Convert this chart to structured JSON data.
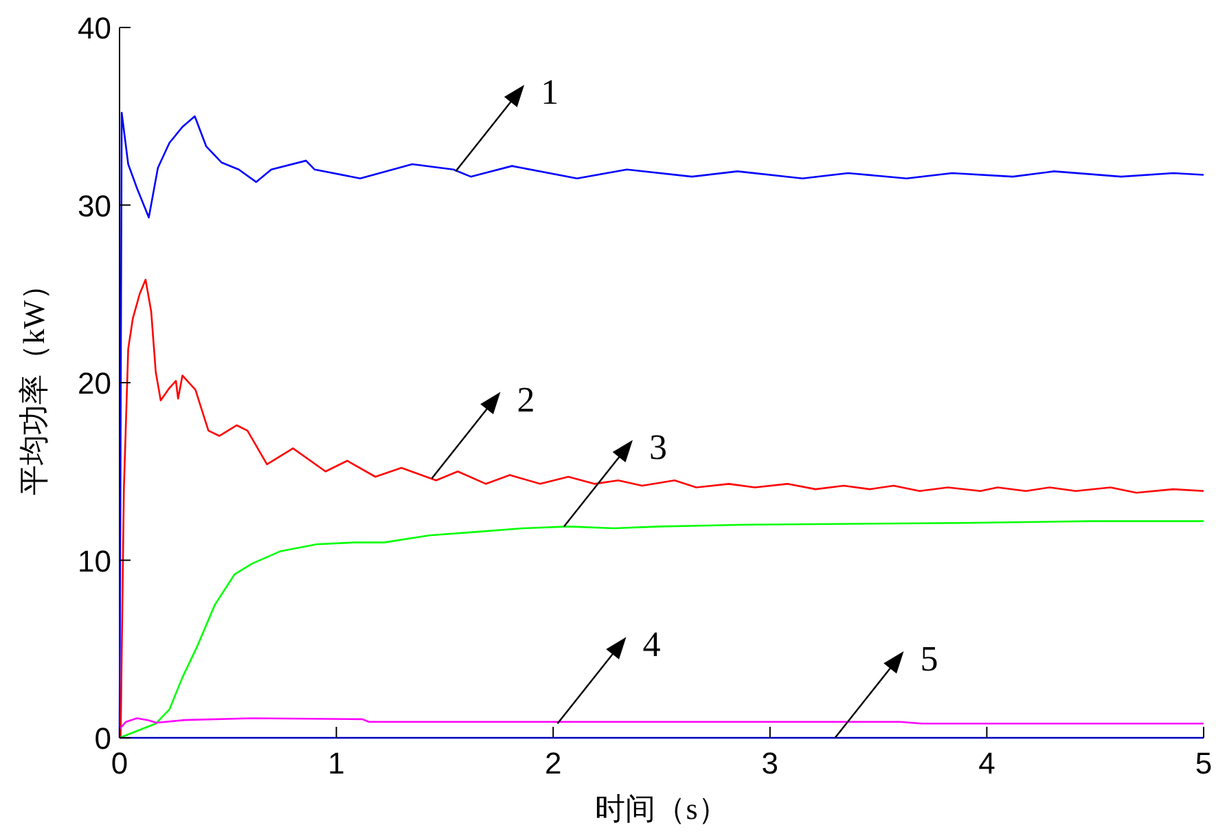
{
  "chart_data": {
    "type": "line",
    "xlabel": "时间（s）",
    "ylabel": "平均功率（kW）",
    "xlim": [
      0,
      5
    ],
    "ylim": [
      0,
      40
    ],
    "xticks": [
      0,
      1,
      2,
      3,
      4,
      5
    ],
    "yticks": [
      0,
      10,
      20,
      30,
      40
    ],
    "series": [
      {
        "color": "#0000ff",
        "x": [
          0,
          0.01,
          0.04,
          0.082,
          0.135,
          0.177,
          0.23,
          0.29,
          0.347,
          0.4,
          0.47,
          0.55,
          0.63,
          0.7,
          0.86,
          0.9,
          1.11,
          1.35,
          1.54,
          1.62,
          1.81,
          2.11,
          2.34,
          2.64,
          2.85,
          3.15,
          3.36,
          3.63,
          3.84,
          4.12,
          4.31,
          4.62,
          4.86,
          5.0
        ],
        "values": [
          0,
          35.2,
          32.3,
          30.9,
          29.3,
          32.1,
          33.5,
          34.4,
          35.0,
          33.3,
          32.4,
          32.0,
          31.3,
          32.0,
          32.5,
          32.0,
          31.5,
          32.3,
          32.0,
          31.6,
          32.2,
          31.5,
          32.0,
          31.6,
          31.9,
          31.5,
          31.8,
          31.5,
          31.8,
          31.6,
          31.9,
          31.6,
          31.8,
          31.7
        ]
      },
      {
        "color": "#ff0000",
        "x": [
          0.005,
          0.02,
          0.04,
          0.061,
          0.093,
          0.12,
          0.146,
          0.167,
          0.19,
          0.23,
          0.26,
          0.27,
          0.29,
          0.35,
          0.41,
          0.46,
          0.54,
          0.59,
          0.68,
          0.8,
          0.95,
          1.05,
          1.18,
          1.3,
          1.46,
          1.56,
          1.69,
          1.8,
          1.94,
          2.07,
          2.19,
          2.3,
          2.41,
          2.56,
          2.66,
          2.81,
          2.93,
          3.08,
          3.21,
          3.34,
          3.46,
          3.57,
          3.69,
          3.82,
          3.97,
          4.05,
          4.18,
          4.29,
          4.41,
          4.57,
          4.69,
          4.86,
          5.0
        ],
        "values": [
          0,
          14,
          21.9,
          23.6,
          25.0,
          25.8,
          24.0,
          20.6,
          19.0,
          19.7,
          20.1,
          19.1,
          20.4,
          19.6,
          17.3,
          17.0,
          17.6,
          17.3,
          15.4,
          16.3,
          15.0,
          15.6,
          14.7,
          15.2,
          14.5,
          15.0,
          14.3,
          14.8,
          14.3,
          14.7,
          14.3,
          14.5,
          14.2,
          14.5,
          14.1,
          14.3,
          14.1,
          14.3,
          14.0,
          14.2,
          14.0,
          14.2,
          13.9,
          14.1,
          13.9,
          14.1,
          13.9,
          14.1,
          13.9,
          14.1,
          13.8,
          14.0,
          13.9
        ]
      },
      {
        "color": "#00ff00",
        "x": [
          0,
          0.167,
          0.23,
          0.29,
          0.36,
          0.44,
          0.53,
          0.61,
          0.74,
          0.91,
          1.08,
          1.22,
          1.43,
          1.65,
          1.86,
          2.07,
          2.28,
          2.49,
          2.89,
          3.88,
          4.48,
          5.0
        ],
        "values": [
          0,
          0.8,
          1.6,
          3.4,
          5.2,
          7.5,
          9.2,
          9.8,
          10.5,
          10.9,
          11.0,
          11.0,
          11.4,
          11.6,
          11.8,
          11.9,
          11.8,
          11.9,
          12.0,
          12.1,
          12.2,
          12.2
        ]
      },
      {
        "color": "#ff00ff",
        "x": [
          0,
          0.03,
          0.08,
          0.13,
          0.17,
          0.3,
          0.61,
          1.12,
          1.15,
          3.6,
          3.7,
          5.0
        ],
        "values": [
          0.5,
          0.9,
          1.1,
          1.0,
          0.85,
          1.0,
          1.1,
          1.05,
          0.9,
          0.9,
          0.8,
          0.8
        ]
      },
      {
        "color": "#0000c0",
        "x": [
          0,
          5.0
        ],
        "values": [
          0,
          0
        ]
      }
    ],
    "annotations": [
      {
        "text": "1",
        "x": 1.55,
        "y": 31.9
      },
      {
        "text": "2",
        "x": 1.44,
        "y": 14.6
      },
      {
        "text": "3",
        "x": 2.05,
        "y": 11.9
      },
      {
        "text": "4",
        "x": 2.02,
        "y": 0.8
      },
      {
        "text": "5",
        "x": 3.3,
        "y": 0
      }
    ]
  }
}
